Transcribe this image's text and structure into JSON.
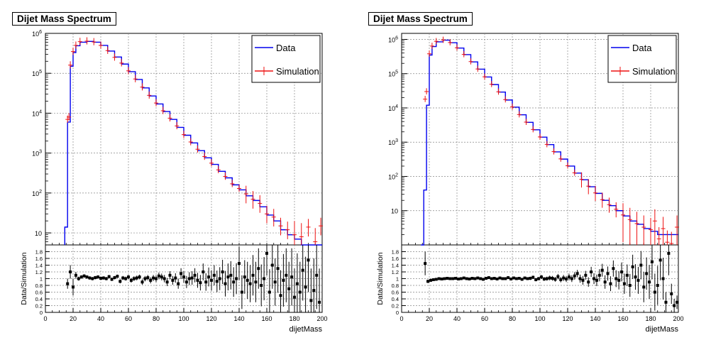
{
  "canvases": [
    {
      "title": "Dijet Mass Spectrum",
      "legend": {
        "data_label": "Data",
        "sim_label": "Simulation",
        "data_color": "#0000ee",
        "sim_color": "#ee1111"
      },
      "ratio_ylabel": "Data/Simulation",
      "xlabel": "dijetMass"
    },
    {
      "title": "Dijet Mass Spectrum",
      "legend": {
        "data_label": "Data",
        "sim_label": "Simulation",
        "data_color": "#0000ee",
        "sim_color": "#ee1111"
      },
      "ratio_ylabel": "Data/Simulation",
      "xlabel": "dijetMass"
    }
  ],
  "chart_data": [
    {
      "type": "line",
      "title": "Dijet Mass Spectrum",
      "xlabel": "dijetMass",
      "xlim": [
        0,
        200
      ],
      "x_ticks": [
        "0",
        "20",
        "40",
        "60",
        "80",
        "100",
        "120",
        "140",
        "160",
        "180",
        "200"
      ],
      "upper": {
        "scale": "log",
        "ylim": [
          5,
          1000000
        ],
        "y_ticks": [
          "10",
          "10^2",
          "10^3",
          "10^4",
          "10^5",
          "10^6"
        ],
        "y_tick_values": [
          10,
          100,
          1000,
          10000,
          100000,
          1000000
        ],
        "grid": true,
        "legend_position": "top-right",
        "series": [
          {
            "name": "Data",
            "style": "step",
            "color": "#0000ee",
            "x": [
              14,
              16,
              18,
              20,
              22,
              25,
              30,
              35,
              40,
              45,
              50,
              55,
              60,
              65,
              70,
              75,
              80,
              85,
              90,
              95,
              100,
              105,
              110,
              115,
              120,
              125,
              130,
              135,
              140,
              145,
              150,
              155,
              160,
              165,
              170,
              175,
              180,
              185,
              190,
              195,
              200
            ],
            "y": [
              14,
              6000,
              150000,
              330000,
              490000,
              600000,
              630000,
              600000,
              500000,
              360000,
              255000,
              170000,
              110000,
              70000,
              43000,
              27000,
              17000,
              11000,
              7000,
              4400,
              2800,
              1800,
              1150,
              760,
              520,
              350,
              240,
              160,
              120,
              85,
              65,
              45,
              28,
              20,
              12,
              9,
              7,
              5,
              3,
              4,
              4
            ]
          },
          {
            "name": "Simulation",
            "style": "errorbar",
            "color": "#ee1111",
            "x": [
              16,
              17,
              18,
              20,
              22,
              25,
              30,
              35,
              40,
              45,
              50,
              55,
              60,
              65,
              70,
              75,
              80,
              85,
              90,
              95,
              100,
              105,
              110,
              115,
              120,
              125,
              130,
              135,
              140,
              145,
              150,
              155,
              160,
              165,
              170,
              175,
              180,
              185,
              190,
              195,
              199
            ],
            "y": [
              7000,
              8000,
              160000,
              350000,
              500000,
              620000,
              640000,
              610000,
              500000,
              370000,
              250000,
              180000,
              115000,
              72000,
              45000,
              28000,
              18000,
              11500,
              7500,
              4800,
              2900,
              1900,
              1250,
              820,
              560,
              380,
              260,
              170,
              130,
              95,
              70,
              55,
              30,
              25,
              15,
              12,
              9,
              8,
              14,
              6,
              15
            ]
          }
        ]
      },
      "ratio": {
        "ylabel": "Data/Simulation",
        "ylim": [
          0,
          2
        ],
        "y_ticks": [
          "0",
          "0.2",
          "0.4",
          "0.6",
          "0.8",
          "1",
          "1.2",
          "1.4",
          "1.6",
          "1.8"
        ],
        "y_tick_values": [
          0,
          0.2,
          0.4,
          0.6,
          0.8,
          1,
          1.2,
          1.4,
          1.6,
          1.8
        ],
        "color": "#000000",
        "x": [
          16,
          18,
          20,
          22,
          24,
          26,
          28,
          30,
          32,
          34,
          36,
          38,
          40,
          42,
          44,
          46,
          48,
          50,
          52,
          54,
          56,
          58,
          60,
          62,
          64,
          66,
          68,
          70,
          72,
          74,
          76,
          78,
          80,
          82,
          84,
          86,
          88,
          90,
          92,
          94,
          96,
          98,
          100,
          102,
          104,
          106,
          108,
          110,
          112,
          114,
          116,
          118,
          120,
          122,
          124,
          126,
          128,
          130,
          132,
          134,
          136,
          138,
          140,
          142,
          144,
          146,
          148,
          150,
          152,
          154,
          156,
          158,
          160,
          162,
          164,
          166,
          168,
          170,
          172,
          174,
          176,
          178,
          180,
          182,
          184,
          186,
          188,
          190,
          192,
          194,
          196,
          198
        ],
        "y": [
          0.85,
          1.2,
          0.75,
          1.1,
          1.0,
          1.05,
          1.08,
          1.05,
          1.02,
          1.0,
          1.03,
          1.05,
          1.01,
          1.02,
          1.0,
          1.06,
          0.98,
          1.03,
          1.07,
          0.92,
          1.02,
          1.0,
          1.05,
          0.95,
          1.0,
          1.02,
          1.05,
          0.9,
          1.0,
          1.03,
          0.95,
          1.02,
          1.0,
          1.08,
          1.05,
          1.0,
          0.9,
          1.1,
          0.95,
          1.02,
          0.85,
          1.15,
          1.05,
          0.9,
          1.0,
          1.02,
          1.1,
          0.95,
          0.88,
          1.2,
          0.9,
          1.05,
          0.95,
          1.1,
          0.92,
          1.0,
          1.2,
          0.85,
          1.05,
          1.1,
          0.9,
          1.0,
          1.45,
          0.6,
          1.05,
          0.95,
          0.85,
          1.1,
          0.9,
          1.3,
          0.8,
          1.0,
          1.75,
          0.6,
          1.4,
          0.9,
          1.3,
          0.5,
          0.95,
          1.1,
          0.7,
          1.05,
          0.45,
          0.85,
          0.6,
          1.25,
          0.75,
          1.55,
          0.35,
          0.65,
          1.1,
          0.3
        ],
        "err": [
          0.15,
          0.2,
          0.25,
          0.1,
          0.06,
          0.05,
          0.05,
          0.05,
          0.05,
          0.05,
          0.05,
          0.05,
          0.05,
          0.05,
          0.05,
          0.05,
          0.05,
          0.05,
          0.05,
          0.06,
          0.06,
          0.06,
          0.06,
          0.07,
          0.07,
          0.07,
          0.07,
          0.08,
          0.08,
          0.08,
          0.09,
          0.09,
          0.1,
          0.1,
          0.1,
          0.11,
          0.12,
          0.12,
          0.13,
          0.14,
          0.15,
          0.16,
          0.17,
          0.18,
          0.19,
          0.2,
          0.21,
          0.22,
          0.23,
          0.25,
          0.26,
          0.28,
          0.3,
          0.3,
          0.32,
          0.34,
          0.36,
          0.38,
          0.4,
          0.42,
          0.44,
          0.46,
          0.5,
          0.5,
          0.5,
          0.55,
          0.55,
          0.6,
          0.6,
          0.6,
          0.62,
          0.64,
          0.66,
          0.68,
          0.7,
          0.7,
          0.72,
          0.75,
          0.78,
          0.8,
          0.8,
          0.85,
          0.85,
          0.9,
          0.9,
          0.9,
          0.9,
          0.95,
          0.95,
          0.95,
          1.0,
          1.0
        ]
      }
    },
    {
      "type": "line",
      "title": "Dijet Mass Spectrum",
      "xlabel": "dijetMass",
      "xlim": [
        0,
        200
      ],
      "x_ticks": [
        "0",
        "20",
        "40",
        "60",
        "80",
        "100",
        "120",
        "140",
        "160",
        "180",
        "200"
      ],
      "upper": {
        "scale": "log",
        "ylim": [
          1,
          1500000
        ],
        "y_ticks": [
          "10",
          "10^2",
          "10^3",
          "10^4",
          "10^5",
          "10^6"
        ],
        "y_tick_values": [
          10,
          100,
          1000,
          10000,
          100000,
          1000000
        ],
        "grid": true,
        "legend_position": "top-right",
        "series": [
          {
            "name": "Data",
            "style": "step",
            "color": "#0000ee",
            "x": [
              14,
              16,
              18,
              20,
              22,
              25,
              30,
              35,
              40,
              45,
              50,
              55,
              60,
              65,
              70,
              75,
              80,
              85,
              90,
              95,
              100,
              105,
              110,
              115,
              120,
              125,
              130,
              135,
              140,
              145,
              150,
              155,
              160,
              165,
              170,
              175,
              180,
              185,
              190,
              195,
              200
            ],
            "y": [
              1,
              40,
              12000,
              350000,
              620000,
              850000,
              950000,
              800000,
              560000,
              360000,
              220000,
              135000,
              80000,
              48000,
              29000,
              17000,
              10500,
              6300,
              3800,
              2300,
              1400,
              850,
              520,
              320,
              200,
              125,
              80,
              50,
              32,
              20,
              14,
              10,
              7,
              5,
              4,
              3,
              2.5,
              2,
              2,
              2,
              2
            ]
          },
          {
            "name": "Simulation",
            "style": "errorbar",
            "color": "#ee1111",
            "x": [
              17,
              18,
              20,
              22,
              25,
              30,
              35,
              40,
              45,
              50,
              55,
              60,
              65,
              70,
              75,
              80,
              85,
              90,
              95,
              100,
              105,
              110,
              115,
              120,
              125,
              130,
              135,
              140,
              145,
              150,
              155,
              160,
              165,
              170,
              175,
              180,
              183,
              186,
              189,
              192,
              195,
              199
            ],
            "y": [
              18000,
              30000,
              380000,
              640000,
              880000,
              960000,
              810000,
              570000,
              365000,
              225000,
              137000,
              81000,
              49000,
              29500,
              17500,
              10700,
              6400,
              3850,
              2350,
              1420,
              860,
              530,
              325,
              205,
              127,
              82,
              52,
              33,
              21,
              15,
              11,
              7.5,
              5.5,
              4.2,
              3.3,
              2.8,
              5,
              1.5,
              3,
              1.2,
              1.1,
              3.3
            ]
          }
        ]
      },
      "ratio": {
        "ylabel": "Data/Simulation",
        "ylim": [
          0,
          2
        ],
        "y_ticks": [
          "0",
          "0.2",
          "0.4",
          "0.6",
          "0.8",
          "1",
          "1.2",
          "1.4",
          "1.6",
          "1.8"
        ],
        "y_tick_values": [
          0,
          0.2,
          0.4,
          0.6,
          0.8,
          1,
          1.2,
          1.4,
          1.6,
          1.8
        ],
        "color": "#000000",
        "x": [
          17,
          19,
          21,
          23,
          25,
          27,
          29,
          31,
          33,
          35,
          37,
          39,
          41,
          43,
          45,
          47,
          49,
          51,
          53,
          55,
          57,
          59,
          61,
          63,
          65,
          67,
          69,
          71,
          73,
          75,
          77,
          79,
          81,
          83,
          85,
          87,
          89,
          91,
          93,
          95,
          97,
          99,
          101,
          103,
          105,
          107,
          109,
          111,
          113,
          115,
          117,
          119,
          121,
          123,
          125,
          127,
          129,
          131,
          133,
          135,
          137,
          139,
          141,
          143,
          145,
          147,
          149,
          151,
          153,
          155,
          157,
          159,
          161,
          163,
          165,
          167,
          169,
          171,
          173,
          175,
          177,
          179,
          181,
          183,
          185,
          187,
          189,
          191,
          193,
          195,
          197,
          199
        ],
        "y": [
          1.45,
          0.92,
          0.95,
          0.97,
          0.98,
          1.0,
          0.99,
          1.0,
          1.01,
          1.0,
          1.0,
          1.01,
          0.99,
          1.0,
          1.02,
          1.0,
          0.99,
          1.01,
          1.0,
          1.02,
          1.0,
          0.98,
          1.01,
          1.03,
          1.0,
          1.01,
          0.99,
          1.02,
          1.0,
          1.0,
          1.03,
          0.99,
          1.02,
          1.0,
          1.01,
          0.98,
          1.02,
          1.0,
          1.01,
          1.04,
          0.97,
          1.0,
          1.05,
          0.99,
          1.0,
          1.02,
          1.01,
          0.98,
          1.06,
          0.97,
          1.02,
          0.99,
          1.05,
          1.0,
          1.08,
          1.15,
          1.0,
          0.95,
          1.1,
          0.9,
          1.2,
          1.0,
          0.95,
          1.1,
          1.25,
          0.9,
          1.15,
          0.85,
          1.3,
          1.0,
          0.95,
          1.2,
          0.85,
          1.1,
          0.8,
          1.35,
          1.05,
          0.95,
          1.4,
          0.75,
          1.15,
          0.9,
          1.5,
          0.6,
          0.8,
          1.55,
          1.0,
          0.3,
          1.75,
          0.55,
          0.2,
          0.3
        ],
        "err": [
          0.35,
          0.05,
          0.04,
          0.03,
          0.03,
          0.03,
          0.03,
          0.03,
          0.03,
          0.03,
          0.03,
          0.03,
          0.03,
          0.03,
          0.03,
          0.03,
          0.03,
          0.03,
          0.03,
          0.03,
          0.03,
          0.03,
          0.03,
          0.03,
          0.03,
          0.03,
          0.03,
          0.03,
          0.03,
          0.03,
          0.03,
          0.03,
          0.04,
          0.04,
          0.04,
          0.04,
          0.04,
          0.04,
          0.05,
          0.05,
          0.05,
          0.05,
          0.06,
          0.06,
          0.06,
          0.07,
          0.07,
          0.07,
          0.08,
          0.08,
          0.09,
          0.09,
          0.1,
          0.1,
          0.11,
          0.11,
          0.12,
          0.13,
          0.13,
          0.14,
          0.15,
          0.16,
          0.17,
          0.18,
          0.19,
          0.2,
          0.21,
          0.22,
          0.24,
          0.25,
          0.27,
          0.28,
          0.3,
          0.32,
          0.34,
          0.36,
          0.38,
          0.4,
          0.42,
          0.45,
          0.48,
          0.5,
          0.52,
          0.55,
          0.58,
          0.6,
          0.62,
          0.3,
          0.65,
          0.3,
          0.2,
          0.2
        ]
      }
    }
  ]
}
